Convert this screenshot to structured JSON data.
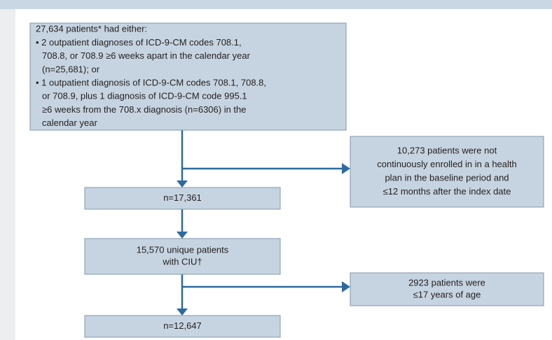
{
  "nodes": [
    {
      "lines": [
        "27,634 patients* had either:",
        "• 2 outpatient diagnoses of ICD-9-CM codes 708.1,",
        "708.8, or 708.9 ≥6 weeks apart in the calendar year",
        "(n=25,681); or",
        "• 1 outpatient diagnosis of ICD-9-CM codes 708.1, 708.8,",
        "or 708.9, plus 1 diagnosis of ICD-9-CM code 995.1",
        "≥6 weeks from the 708.x diagnosis (n=6306) in the",
        "calendar year"
      ]
    },
    {
      "lines": [
        "10,273 patients were not",
        "continuously enrolled in in a health",
        "plan in the baseline period and",
        "≤12 months after the index date"
      ]
    },
    {
      "lines": [
        "n=17,361"
      ]
    },
    {
      "lines": [
        "15,570 unique patients",
        "with CIU†"
      ]
    },
    {
      "lines": [
        "2923 patients were",
        "≤17 years of age"
      ]
    },
    {
      "lines": [
        "n=12,647"
      ]
    }
  ]
}
